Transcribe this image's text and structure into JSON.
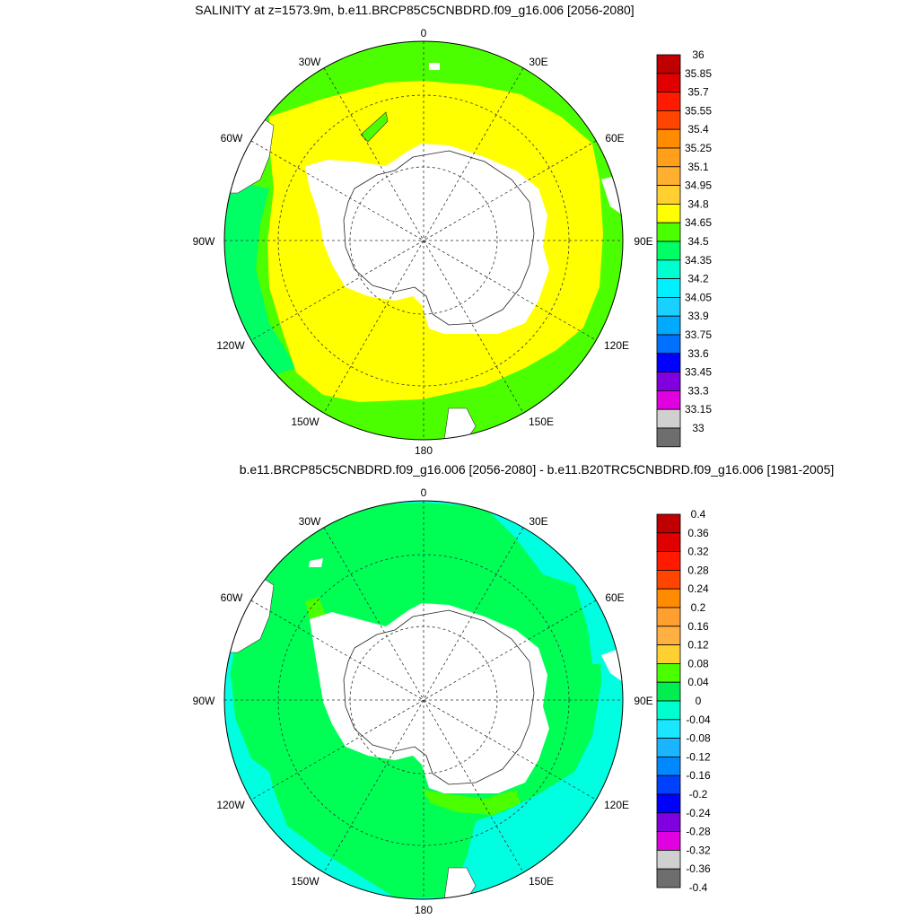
{
  "panel1": {
    "title": "SALINITY at z=1573.9m, b.e11.BRCP85C5CNBDRD.f09_g16.006 [2056-2080]",
    "lon_labels": [
      "0",
      "30E",
      "60E",
      "90E",
      "120E",
      "150E",
      "180",
      "150W",
      "120W",
      "90W",
      "60W",
      "30W"
    ],
    "colorbar": {
      "labels": [
        "36",
        "35.85",
        "35.7",
        "35.55",
        "35.4",
        "35.25",
        "35.1",
        "34.95",
        "34.8",
        "34.65",
        "34.5",
        "34.35",
        "34.2",
        "34.05",
        "33.9",
        "33.75",
        "33.6",
        "33.45",
        "33.3",
        "33.15",
        "33"
      ],
      "colors": [
        "#c00000",
        "#e00000",
        "#ff1a00",
        "#ff4500",
        "#ff8c00",
        "#ff9f1a",
        "#ffb030",
        "#ffd030",
        "#ffff00",
        "#4cff00",
        "#00ff64",
        "#00ffd0",
        "#00f0ff",
        "#1ad0ff",
        "#00aaff",
        "#0070ff",
        "#0000ff",
        "#8000e0",
        "#e000e0",
        "#d0d0d0",
        "#6e6e6e"
      ]
    }
  },
  "panel2": {
    "title": "b.e11.BRCP85C5CNBDRD.f09_g16.006 [2056-2080] - b.e11.B20TRC5CNBDRD.f09_g16.006 [1981-2005]",
    "lon_labels": [
      "0",
      "30E",
      "60E",
      "90E",
      "120E",
      "150E",
      "180",
      "150W",
      "120W",
      "90W",
      "60W",
      "30W"
    ],
    "colorbar": {
      "labels": [
        "0.4",
        "0.36",
        "0.32",
        "0.28",
        "0.24",
        "0.2",
        "0.16",
        "0.12",
        "0.08",
        "0.04",
        "0",
        "-0.04",
        "-0.08",
        "-0.12",
        "-0.16",
        "-0.2",
        "-0.24",
        "-0.28",
        "-0.32",
        "-0.36",
        "-0.4"
      ],
      "colors": [
        "#c00000",
        "#e00000",
        "#ff1a00",
        "#ff4500",
        "#ff8c00",
        "#ff9f30",
        "#ffb040",
        "#ffd030",
        "#4cff00",
        "#00ee50",
        "#00ffd0",
        "#1ae6ff",
        "#1ab4ff",
        "#0088ff",
        "#0040ff",
        "#0000ff",
        "#8000e0",
        "#e000e0",
        "#d0d0d0",
        "#6e6e6e"
      ]
    }
  },
  "colors": {
    "yellow": "#ffff00",
    "green": "#4cff00",
    "seagreen": "#00ff64",
    "diff_green": "#00ff55",
    "diff_cyan": "#00ffe0",
    "land": "#ffffff"
  }
}
